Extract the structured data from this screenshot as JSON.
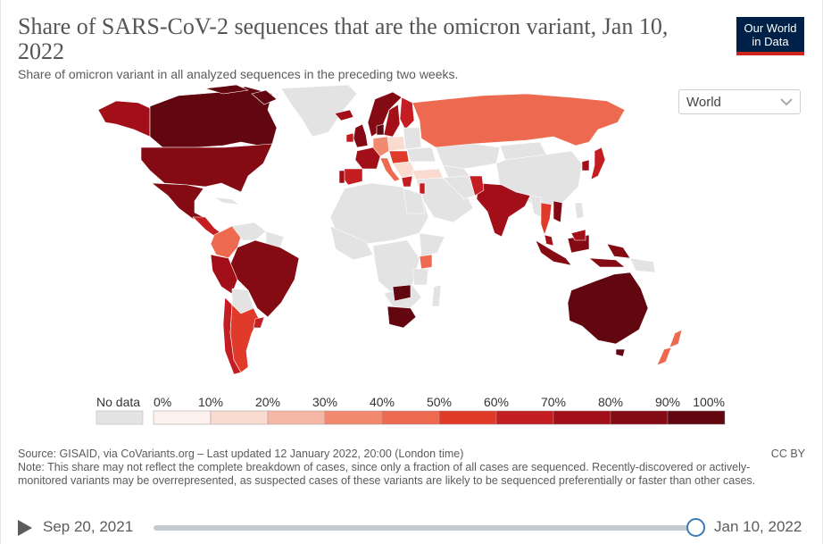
{
  "header": {
    "title": "Share of SARS-CoV-2 sequences that are the omicron variant, Jan 10, 2022",
    "subtitle": "Share of omicron variant in all analyzed sequences in the preceding two weeks."
  },
  "logo": {
    "line1": "Our World",
    "line2": "in Data"
  },
  "region_select": {
    "value": "World"
  },
  "legend": {
    "no_data_label": "No data",
    "ticks": [
      "0%",
      "10%",
      "20%",
      "30%",
      "40%",
      "50%",
      "60%",
      "70%",
      "80%",
      "90%",
      "100%"
    ],
    "no_data_color": "#e3e3e3",
    "bin_colors": [
      "#fdf2ee",
      "#fadbd0",
      "#f6b8a6",
      "#f28a70",
      "#ed6a50",
      "#e03b2a",
      "#c41d22",
      "#a30f19",
      "#840b14",
      "#620710"
    ]
  },
  "map_data": {
    "United States": "80-90%",
    "Canada": "90-100%",
    "Mexico": "80-90%",
    "Brazil": "80-90%",
    "Argentina": "60-70%",
    "Chile": "60-70%",
    "Colombia": "40-50%",
    "Peru": "70-80%",
    "Australia": "90-100%",
    "India": "70-80%",
    "Russia": "40-50%",
    "South Africa": "90-100%",
    "Kenya": "40-50%",
    "Japan": "70-80%",
    "New Zealand": "40-50%",
    "Indonesia": "80-90%",
    "United Kingdom": "80-90%",
    "France": "70-80%",
    "Spain": "80-90%",
    "Portugal": "70-80%",
    "Germany": "30-40%",
    "Italy": "40-50%",
    "Norway": "80-90%",
    "Sweden": "70-80%",
    "Denmark": "90-100%",
    "Turkey": "10-20%",
    "Israel": "70-80%",
    "Thailand": "50-60%"
  },
  "footer": {
    "source": "Source: GISAID, via CoVariants.org – Last updated 12 January 2022, 20:00 (London time)",
    "license": "CC BY",
    "note": "Note: This share may not reflect the complete breakdown of cases, since only a fraction of all cases are sequenced. Recently-discovered or actively-monitored variants may be overrepresented, as suspected cases of these variants are likely to be sequenced preferentially or faster than other cases."
  },
  "timeline": {
    "start_date": "Sep 20, 2021",
    "end_date": "Jan 10, 2022",
    "position": 1.0
  }
}
